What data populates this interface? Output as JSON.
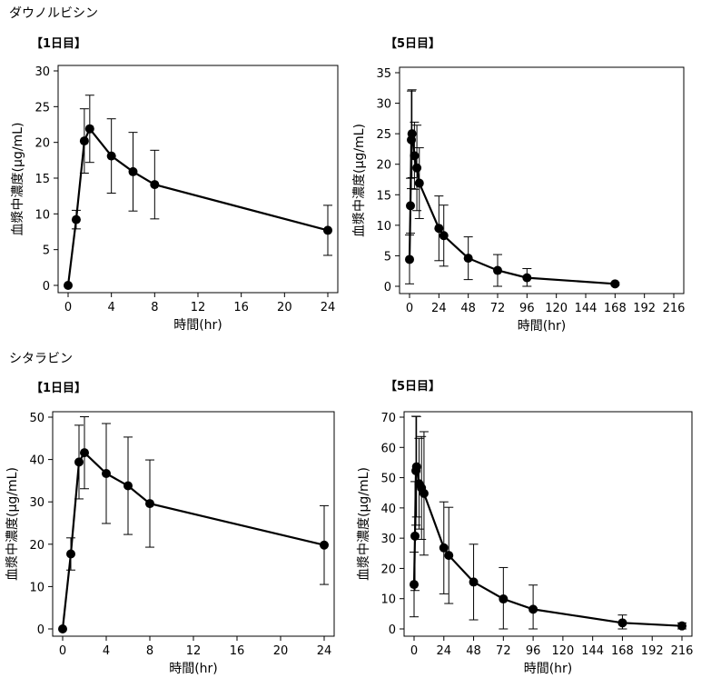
{
  "sections": [
    {
      "title": "ダウノルビシン"
    },
    {
      "title": "シタラビン"
    }
  ],
  "chart_data": [
    {
      "type": "scatter",
      "day_label": "【1日目】",
      "xlabel": "時間(hr)",
      "ylabel": "血漿中濃度(μg/mL)",
      "xlim": [
        0,
        24
      ],
      "ylim": [
        0,
        30
      ],
      "xticks": [
        0,
        4,
        8,
        12,
        16,
        20,
        24
      ],
      "yticks": [
        0,
        5,
        10,
        15,
        20,
        25,
        30
      ],
      "points": [
        {
          "x": 0,
          "y": 0,
          "err": 0
        },
        {
          "x": 0.75,
          "y": 9.2,
          "err": 1.3
        },
        {
          "x": 1.5,
          "y": 20.2,
          "err": 4.5
        },
        {
          "x": 2,
          "y": 21.9,
          "err": 4.7
        },
        {
          "x": 4,
          "y": 18.1,
          "err": 5.2
        },
        {
          "x": 6,
          "y": 15.9,
          "err": 5.5
        },
        {
          "x": 8,
          "y": 14.1,
          "err": 4.8
        },
        {
          "x": 24,
          "y": 7.7,
          "err": 3.5
        }
      ]
    },
    {
      "type": "scatter",
      "day_label": "【5日目】",
      "xlabel": "時間(hr)",
      "ylabel": "血漿中濃度(μg/mL)",
      "xlim": [
        0,
        216
      ],
      "ylim": [
        0,
        35
      ],
      "xticks": [
        0,
        24,
        48,
        72,
        96,
        120,
        144,
        168,
        192,
        216
      ],
      "yticks": [
        0,
        5,
        10,
        15,
        20,
        25,
        30,
        35
      ],
      "points": [
        {
          "x": 0,
          "y": 4.4,
          "err": 4.0
        },
        {
          "x": 0.75,
          "y": 13.2,
          "err": 4.5
        },
        {
          "x": 1.5,
          "y": 24.0,
          "err": 8.0
        },
        {
          "x": 2,
          "y": 25.0,
          "err": 7.2
        },
        {
          "x": 4,
          "y": 21.4,
          "err": 5.5
        },
        {
          "x": 6,
          "y": 19.4,
          "err": 7.0
        },
        {
          "x": 8,
          "y": 16.9,
          "err": 5.8
        },
        {
          "x": 24,
          "y": 9.5,
          "err": 5.3
        },
        {
          "x": 28,
          "y": 8.3,
          "err": 5.0
        },
        {
          "x": 48,
          "y": 4.6,
          "err": 3.5
        },
        {
          "x": 72,
          "y": 2.6,
          "err": 2.6
        },
        {
          "x": 96,
          "y": 1.4,
          "err": 1.5
        },
        {
          "x": 168,
          "y": 0.4,
          "err": 0.2
        }
      ]
    },
    {
      "type": "scatter",
      "day_label": "【1日目】",
      "xlabel": "時間(hr)",
      "ylabel": "血漿中濃度(μg/mL)",
      "xlim": [
        0,
        24
      ],
      "ylim": [
        0,
        50
      ],
      "xticks": [
        0,
        4,
        8,
        12,
        16,
        20,
        24
      ],
      "yticks": [
        0,
        10,
        20,
        30,
        40,
        50
      ],
      "points": [
        {
          "x": 0,
          "y": 0,
          "err": 0
        },
        {
          "x": 0.75,
          "y": 17.7,
          "err": 3.8
        },
        {
          "x": 1.5,
          "y": 39.4,
          "err": 8.7
        },
        {
          "x": 2,
          "y": 41.6,
          "err": 8.5
        },
        {
          "x": 4,
          "y": 36.7,
          "err": 11.8
        },
        {
          "x": 6,
          "y": 33.8,
          "err": 11.5
        },
        {
          "x": 8,
          "y": 29.6,
          "err": 10.3
        },
        {
          "x": 24,
          "y": 19.8,
          "err": 9.3
        }
      ]
    },
    {
      "type": "scatter",
      "day_label": "【5日目】",
      "xlabel": "時間(hr)",
      "ylabel": "血漿中濃度(μg/mL)",
      "xlim": [
        0,
        216
      ],
      "ylim": [
        0,
        70
      ],
      "xticks": [
        0,
        24,
        48,
        72,
        96,
        120,
        144,
        168,
        192,
        216
      ],
      "yticks": [
        0,
        10,
        20,
        30,
        40,
        50,
        60,
        70
      ],
      "points": [
        {
          "x": 0,
          "y": 14.7,
          "err": 10.7
        },
        {
          "x": 0.75,
          "y": 30.7,
          "err": 18.0
        },
        {
          "x": 1.5,
          "y": 52.3,
          "err": 18.0
        },
        {
          "x": 2,
          "y": 53.6,
          "err": 16.6
        },
        {
          "x": 4,
          "y": 48.0,
          "err": 15.0
        },
        {
          "x": 6,
          "y": 46.6,
          "err": 17.0
        },
        {
          "x": 8,
          "y": 44.8,
          "err": 20.4
        },
        {
          "x": 24,
          "y": 26.8,
          "err": 15.2
        },
        {
          "x": 28,
          "y": 24.3,
          "err": 15.9
        },
        {
          "x": 48,
          "y": 15.5,
          "err": 12.5
        },
        {
          "x": 72,
          "y": 9.9,
          "err": 10.4
        },
        {
          "x": 96,
          "y": 6.5,
          "err": 8.0
        },
        {
          "x": 168,
          "y": 2.0,
          "err": 2.6
        },
        {
          "x": 216,
          "y": 1.0,
          "err": 1.0
        }
      ]
    }
  ]
}
